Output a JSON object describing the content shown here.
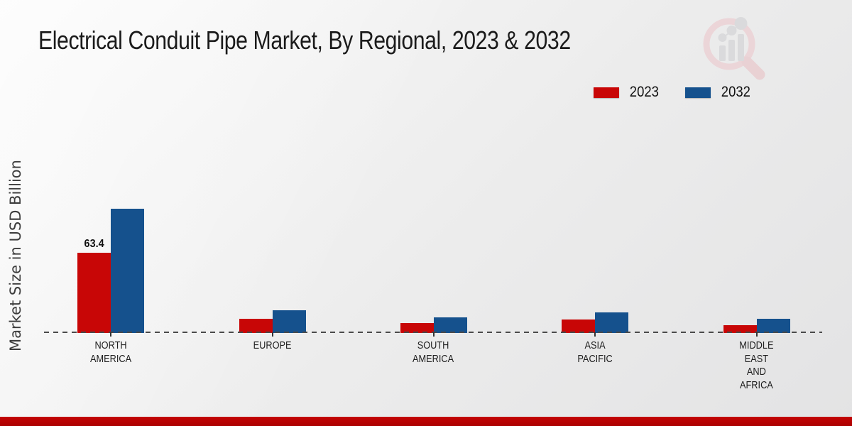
{
  "title": "Electrical Conduit Pipe Market, By Regional, 2023 & 2032",
  "ylabel": "Market Size in USD Billion",
  "colors": {
    "series_2023": "#c80606",
    "series_2032": "#15518d",
    "bottom_strip": "#b90303",
    "baseline": "#4a4a4a",
    "background": "#e9e9e9",
    "title_text": "#1b1b1b"
  },
  "watermark": {
    "name": "market-research-magnifier-logo"
  },
  "chart_data": {
    "type": "bar",
    "title": "Electrical Conduit Pipe Market, By Regional, 2023 & 2032",
    "xlabel": "",
    "ylabel": "Market Size in USD Billion",
    "unit": "USD Billion",
    "categories": [
      "NORTH AMERICA",
      "EUROPE",
      "SOUTH AMERICA",
      "ASIA PACIFIC",
      "MIDDLE EAST AND AFRICA"
    ],
    "category_lines": [
      [
        "NORTH",
        "AMERICA"
      ],
      [
        "EUROPE"
      ],
      [
        "SOUTH",
        "AMERICA"
      ],
      [
        "ASIA",
        "PACIFIC"
      ],
      [
        "MIDDLE",
        "EAST",
        "AND",
        "AFRICA"
      ]
    ],
    "series": [
      {
        "name": "2023",
        "color": "#c80606",
        "values": [
          63.4,
          11.5,
          8.1,
          10.4,
          5.9
        ]
      },
      {
        "name": "2032",
        "color": "#15518d",
        "values": [
          98.2,
          17.7,
          12.6,
          16.0,
          11.5
        ]
      }
    ],
    "annotations": [
      {
        "series_index": 0,
        "category_index": 0,
        "text": "63.4"
      }
    ],
    "axis": {
      "y_ticks_visible": false,
      "gridlines": false,
      "baseline_style": "dashed",
      "ylim": [
        0,
        110
      ]
    },
    "legend_position": "top-right"
  }
}
